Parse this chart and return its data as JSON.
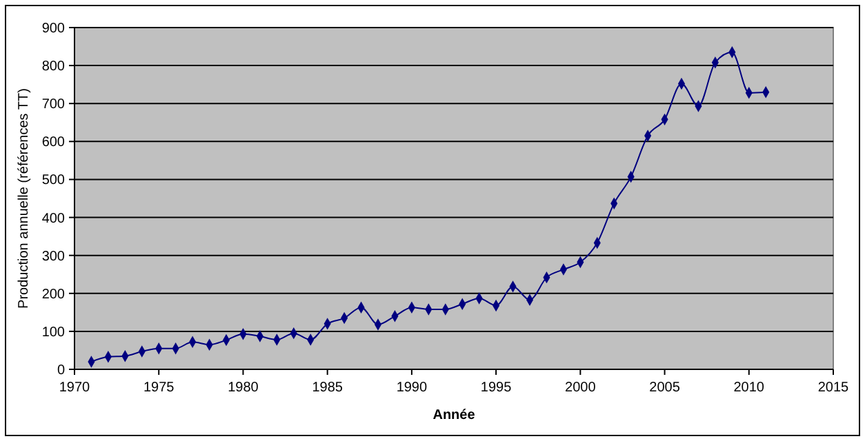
{
  "chart_data": {
    "type": "line",
    "xlabel": "Année",
    "ylabel": "Production annuelle (références TT)",
    "x": [
      1971,
      1972,
      1973,
      1974,
      1975,
      1976,
      1977,
      1978,
      1979,
      1980,
      1981,
      1982,
      1983,
      1984,
      1985,
      1986,
      1987,
      1988,
      1989,
      1990,
      1991,
      1992,
      1993,
      1994,
      1995,
      1996,
      1997,
      1998,
      1999,
      2000,
      2001,
      2002,
      2003,
      2004,
      2005,
      2006,
      2007,
      2008,
      2009,
      2010,
      2011
    ],
    "series": [
      {
        "color": "#000080",
        "values": [
          20,
          33,
          35,
          47,
          55,
          55,
          72,
          65,
          77,
          93,
          87,
          78,
          95,
          78,
          120,
          135,
          163,
          118,
          140,
          163,
          158,
          158,
          172,
          187,
          168,
          218,
          183,
          242,
          263,
          282,
          333,
          437,
          507,
          615,
          658,
          752,
          693,
          808,
          835,
          728,
          730
        ]
      }
    ],
    "xlim": [
      1970,
      2015
    ],
    "xticks": [
      1970,
      1975,
      1980,
      1985,
      1990,
      1995,
      2000,
      2005,
      2010,
      2015
    ],
    "ylim": [
      0,
      900
    ],
    "yticks": [
      0,
      100,
      200,
      300,
      400,
      500,
      600,
      700,
      800,
      900
    ],
    "grid": "y",
    "marker": "diamond",
    "line_style": "solid"
  }
}
